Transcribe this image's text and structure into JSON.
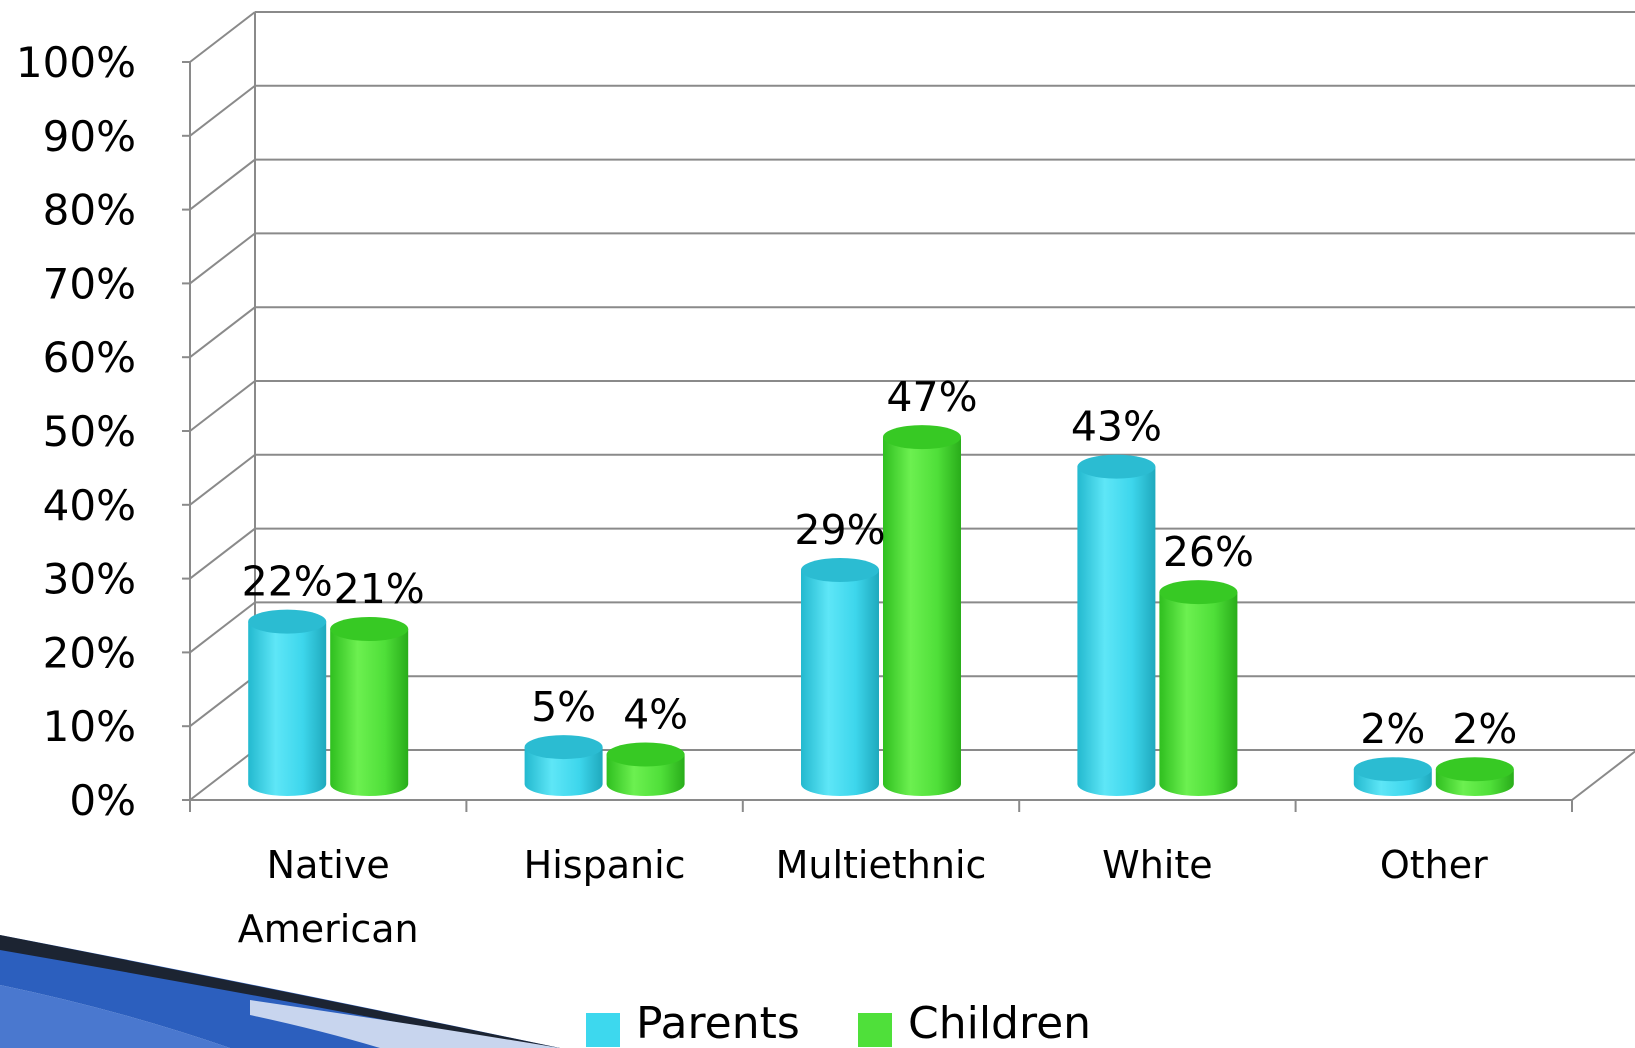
{
  "chart_data": {
    "type": "bar",
    "title": "",
    "xlabel": "",
    "ylabel": "",
    "ylim": [
      0,
      100
    ],
    "yticks": [
      "0%",
      "10%",
      "20%",
      "30%",
      "40%",
      "50%",
      "60%",
      "70%",
      "80%",
      "90%",
      "100%"
    ],
    "categories": [
      [
        "Native",
        "American"
      ],
      [
        "Hispanic"
      ],
      [
        "Multiethnic"
      ],
      [
        "White"
      ],
      [
        "Other"
      ]
    ],
    "series": [
      {
        "name": "Parents",
        "color": "#3dd8ee",
        "values": [
          22,
          5,
          29,
          43,
          2
        ],
        "labels": [
          "22%",
          "5%",
          "29%",
          "43%",
          "2%"
        ]
      },
      {
        "name": "Children",
        "color": "#4fe03a",
        "values": [
          21,
          4,
          47,
          26,
          2
        ],
        "labels": [
          "21%",
          "4%",
          "47%",
          "26%",
          "2%"
        ]
      }
    ],
    "grid": true,
    "legend": "bottom",
    "style": "3d-cylinder"
  }
}
